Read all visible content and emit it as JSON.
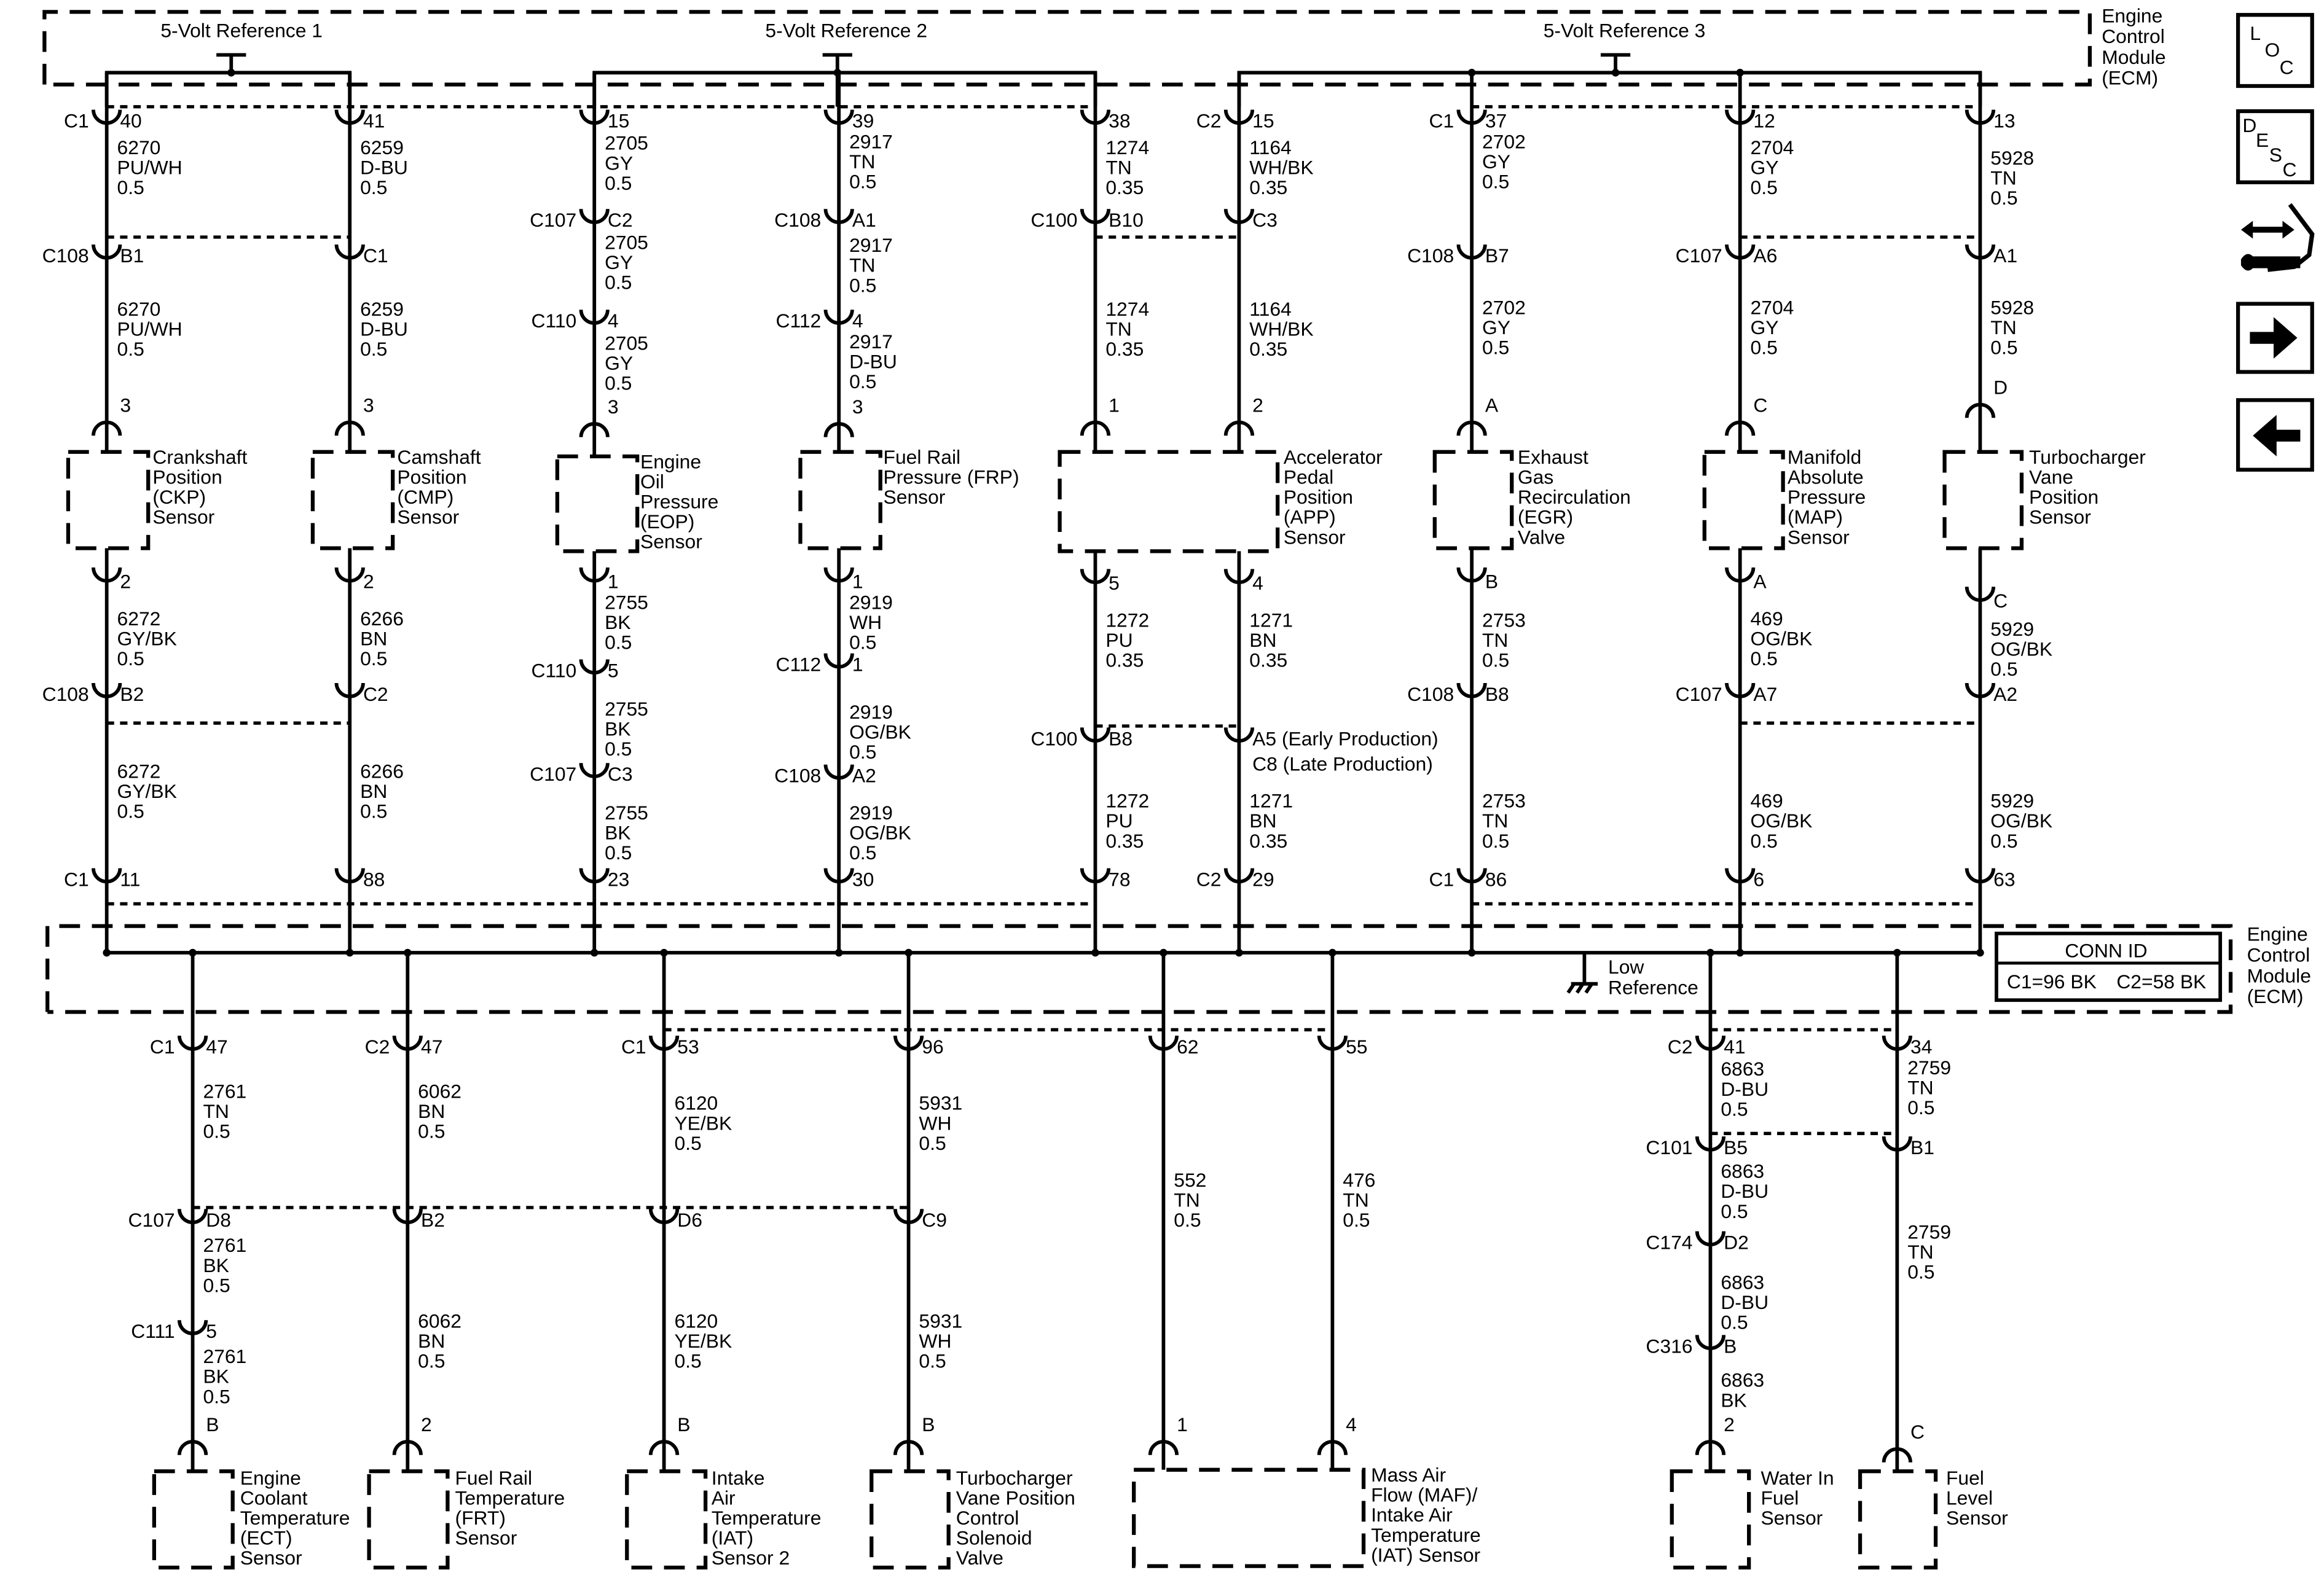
{
  "ecm": {
    "label": [
      "Engine",
      "Control",
      "Module",
      "(ECM)"
    ]
  },
  "references": [
    "5-Volt Reference 1",
    "5-Volt Reference 2",
    "5-Volt Reference 3"
  ],
  "low_reference": [
    "Low",
    "Reference"
  ],
  "conn_id": {
    "title": "CONN ID",
    "c1": "C1=96 BK",
    "c2": "C2=58 BK"
  },
  "nav": {
    "loc": [
      "L",
      "O",
      "C"
    ],
    "desc": [
      "D",
      "E",
      "S",
      "C"
    ],
    "icons": [
      "location-button",
      "description-button",
      "connector-tool-icon",
      "next-arrow-icon",
      "previous-arrow-icon"
    ]
  },
  "top_columns": [
    {
      "sensor": [
        "Crankshaft",
        "Position",
        "(CKP)",
        "Sensor"
      ],
      "to_sensor": [
        {
          "conn": "C1",
          "pin": "40"
        },
        {
          "wire": [
            "6270",
            "PU/WH",
            "0.5"
          ]
        },
        {
          "conn": "C108",
          "pin": "B1"
        },
        {
          "wire": [
            "6270",
            "PU/WH",
            "0.5"
          ]
        },
        {
          "pin": "3"
        }
      ],
      "from_sensor": [
        {
          "pin": "2"
        },
        {
          "wire": [
            "6272",
            "GY/BK",
            "0.5"
          ]
        },
        {
          "conn": "C108",
          "pin": "B2"
        },
        {
          "wire": [
            "6272",
            "GY/BK",
            "0.5"
          ]
        },
        {
          "conn": "C1",
          "pin": "11"
        }
      ]
    },
    {
      "sensor": [
        "Camshaft",
        "Position",
        "(CMP)",
        "Sensor"
      ],
      "to_sensor": [
        {
          "conn": "",
          "pin": "41"
        },
        {
          "wire": [
            "6259",
            "D-BU",
            "0.5"
          ]
        },
        {
          "conn": "",
          "pin": "C1"
        },
        {
          "wire": [
            "6259",
            "D-BU",
            "0.5"
          ]
        },
        {
          "pin": "3"
        }
      ],
      "from_sensor": [
        {
          "pin": "2"
        },
        {
          "wire": [
            "6266",
            "BN",
            "0.5"
          ]
        },
        {
          "conn": "",
          "pin": "C2"
        },
        {
          "wire": [
            "6266",
            "BN",
            "0.5"
          ]
        },
        {
          "conn": "",
          "pin": "88"
        }
      ]
    },
    {
      "sensor": [
        "Engine",
        "Oil",
        "Pressure",
        "(EOP)",
        "Sensor"
      ],
      "to_sensor": [
        {
          "conn": "",
          "pin": "15"
        },
        {
          "wire": [
            "2705",
            "GY",
            "0.5"
          ]
        },
        {
          "conn": "C107",
          "pin": "C2"
        },
        {
          "wire": [
            "2705",
            "GY",
            "0.5"
          ]
        },
        {
          "conn": "C110",
          "pin": "4"
        },
        {
          "wire": [
            "2705",
            "GY",
            "0.5"
          ]
        },
        {
          "pin": "3"
        }
      ],
      "from_sensor": [
        {
          "pin": "1"
        },
        {
          "wire": [
            "2755",
            "BK",
            "0.5"
          ]
        },
        {
          "conn": "C110",
          "pin": "5"
        },
        {
          "wire": [
            "2755",
            "BK",
            "0.5"
          ]
        },
        {
          "conn": "C107",
          "pin": "C3"
        },
        {
          "wire": [
            "2755",
            "BK",
            "0.5"
          ]
        },
        {
          "conn": "",
          "pin": "23"
        }
      ]
    },
    {
      "sensor": [
        "Fuel Rail",
        "Pressure (FRP)",
        "Sensor"
      ],
      "to_sensor": [
        {
          "conn": "",
          "pin": "39"
        },
        {
          "wire": [
            "2917",
            "TN",
            "0.5"
          ]
        },
        {
          "conn": "C108",
          "pin": "A1"
        },
        {
          "wire": [
            "2917",
            "TN",
            "0.5"
          ]
        },
        {
          "conn": "C112",
          "pin": "4"
        },
        {
          "wire": [
            "2917",
            "D-BU",
            "0.5"
          ]
        },
        {
          "pin": "3"
        }
      ],
      "from_sensor": [
        {
          "pin": "1"
        },
        {
          "wire": [
            "2919",
            "WH",
            "0.5"
          ]
        },
        {
          "conn": "C112",
          "pin": "1"
        },
        {
          "wire": [
            "2919",
            "OG/BK",
            "0.5"
          ]
        },
        {
          "conn": "C108",
          "pin": "A2"
        },
        {
          "wire": [
            "2919",
            "OG/BK",
            "0.5"
          ]
        },
        {
          "conn": "",
          "pin": "30"
        }
      ]
    },
    {
      "sensor": [],
      "to_sensor": [
        {
          "conn": "",
          "pin": "38"
        },
        {
          "wire": [
            "1274",
            "TN",
            "0.35"
          ]
        },
        {
          "conn": "C100",
          "pin": "B10"
        },
        {
          "wire": [
            "1274",
            "TN",
            "0.35"
          ]
        },
        {
          "pin": "1"
        }
      ],
      "from_sensor": [
        {
          "pin": "5"
        },
        {
          "wire": [
            "1272",
            "PU",
            "0.35"
          ]
        },
        {
          "conn": "C100",
          "pin": "B8"
        },
        {
          "wire": [
            "1272",
            "PU",
            "0.35"
          ]
        },
        {
          "conn": "",
          "pin": "78"
        }
      ]
    },
    {
      "sensor": [
        "Accelerator",
        "Pedal",
        "Position",
        "(APP)",
        "Sensor"
      ],
      "to_sensor": [
        {
          "conn": "C2",
          "pin": "15"
        },
        {
          "wire": [
            "1164",
            "WH/BK",
            "0.35"
          ]
        },
        {
          "conn": "",
          "pin": "C3"
        },
        {
          "wire": [
            "1164",
            "WH/BK",
            "0.35"
          ]
        },
        {
          "pin": "2"
        }
      ],
      "from_sensor": [
        {
          "pin": "4"
        },
        {
          "wire": [
            "1271",
            "BN",
            "0.35"
          ]
        },
        {
          "conn": "",
          "pin": "A5 (Early Production)",
          "pin2": "C8 (Late Production)"
        },
        {
          "wire": [
            "1271",
            "BN",
            "0.35"
          ]
        },
        {
          "conn": "C2",
          "pin": "29"
        }
      ]
    },
    {
      "sensor": [
        "Exhaust",
        "Gas",
        "Recirculation",
        "(EGR)",
        "Valve"
      ],
      "to_sensor": [
        {
          "conn": "C1",
          "pin": "37"
        },
        {
          "wire": [
            "2702",
            "GY",
            "0.5"
          ]
        },
        {
          "conn": "C108",
          "pin": "B7"
        },
        {
          "wire": [
            "2702",
            "GY",
            "0.5"
          ]
        },
        {
          "pin": "A"
        }
      ],
      "from_sensor": [
        {
          "pin": "B"
        },
        {
          "wire": [
            "2753",
            "TN",
            "0.5"
          ]
        },
        {
          "conn": "C108",
          "pin": "B8"
        },
        {
          "wire": [
            "2753",
            "TN",
            "0.5"
          ]
        },
        {
          "conn": "C1",
          "pin": "86"
        }
      ]
    },
    {
      "sensor": [
        "Manifold",
        "Absolute",
        "Pressure",
        "(MAP)",
        "Sensor"
      ],
      "to_sensor": [
        {
          "conn": "",
          "pin": "12"
        },
        {
          "wire": [
            "2704",
            "GY",
            "0.5"
          ]
        },
        {
          "conn": "C107",
          "pin": "A6"
        },
        {
          "wire": [
            "2704",
            "GY",
            "0.5"
          ]
        },
        {
          "pin": "C"
        }
      ],
      "from_sensor": [
        {
          "pin": "A"
        },
        {
          "wire": [
            "469",
            "OG/BK",
            "0.5"
          ]
        },
        {
          "conn": "C107",
          "pin": "A7"
        },
        {
          "wire": [
            "469",
            "OG/BK",
            "0.5"
          ]
        },
        {
          "conn": "",
          "pin": "6"
        }
      ]
    },
    {
      "sensor": [
        "Turbocharger",
        "Vane",
        "Position",
        "Sensor"
      ],
      "to_sensor": [
        {
          "conn": "",
          "pin": "13"
        },
        {
          "wire": [
            "5928",
            "TN",
            "0.5"
          ]
        },
        {
          "conn": "",
          "pin": "A1"
        },
        {
          "wire": [
            "5928",
            "TN",
            "0.5"
          ]
        },
        {
          "pin": "D"
        }
      ],
      "from_sensor": [
        {
          "pin": "C"
        },
        {
          "wire": [
            "5929",
            "OG/BK",
            "0.5"
          ]
        },
        {
          "conn": "",
          "pin": "A2"
        },
        {
          "wire": [
            "5929",
            "OG/BK",
            "0.5"
          ]
        },
        {
          "conn": "",
          "pin": "63"
        }
      ]
    }
  ],
  "bottom_columns": [
    {
      "sensor": [
        "Engine",
        "Coolant",
        "Temperature",
        "(ECT)",
        "Sensor"
      ],
      "to_sensor": [
        {
          "conn": "C1",
          "pin": "47"
        },
        {
          "wire": [
            "2761",
            "TN",
            "0.5"
          ]
        },
        {
          "conn": "C107",
          "pin": "D8"
        },
        {
          "wire": [
            "2761",
            "BK",
            "0.5"
          ]
        },
        {
          "conn": "C111",
          "pin": "5"
        },
        {
          "wire": [
            "2761",
            "BK",
            "0.5"
          ]
        },
        {
          "pin": "B"
        }
      ]
    },
    {
      "sensor": [
        "Fuel Rail",
        "Temperature",
        "(FRT)",
        "Sensor"
      ],
      "to_sensor": [
        {
          "conn": "C2",
          "pin": "47"
        },
        {
          "wire": [
            "6062",
            "BN",
            "0.5"
          ]
        },
        {
          "conn": "",
          "pin": "B2"
        },
        {
          "wire": [
            "6062",
            "BN",
            "0.5"
          ]
        },
        {
          "pin": "2"
        }
      ]
    },
    {
      "sensor": [
        "Intake",
        "Air",
        "Temperature",
        "(IAT)",
        "Sensor 2"
      ],
      "to_sensor": [
        {
          "conn": "C1",
          "pin": "53"
        },
        {
          "wire": [
            "6120",
            "YE/BK",
            "0.5"
          ]
        },
        {
          "conn": "",
          "pin": "D6"
        },
        {
          "wire": [
            "6120",
            "YE/BK",
            "0.5"
          ]
        },
        {
          "pin": "B"
        }
      ]
    },
    {
      "sensor": [
        "Turbocharger",
        "Vane Position",
        "Control",
        "Solenoid",
        "Valve"
      ],
      "to_sensor": [
        {
          "conn": "",
          "pin": "96"
        },
        {
          "wire": [
            "5931",
            "WH",
            "0.5"
          ]
        },
        {
          "conn": "",
          "pin": "C9"
        },
        {
          "wire": [
            "5931",
            "WH",
            "0.5"
          ]
        },
        {
          "pin": "B"
        }
      ]
    },
    {
      "sensor": [],
      "to_sensor": [
        {
          "conn": "",
          "pin": "62"
        },
        {
          "wire": [
            "552",
            "TN",
            "0.5"
          ]
        },
        {
          "pin": "1"
        }
      ]
    },
    {
      "sensor": [
        "Mass Air",
        "Flow (MAF)/",
        "Intake Air",
        "Temperature",
        "(IAT) Sensor"
      ],
      "to_sensor": [
        {
          "conn": "",
          "pin": "55"
        },
        {
          "wire": [
            "476",
            "TN",
            "0.5"
          ]
        },
        {
          "pin": "4"
        }
      ]
    },
    {
      "sensor": [
        "Water In",
        "Fuel",
        "Sensor"
      ],
      "to_sensor": [
        {
          "conn": "C2",
          "pin": "41"
        },
        {
          "wire": [
            "6863",
            "D-BU",
            "0.5"
          ]
        },
        {
          "conn": "C101",
          "pin": "B5"
        },
        {
          "wire": [
            "6863",
            "D-BU",
            "0.5"
          ]
        },
        {
          "conn": "C174",
          "pin": "D2"
        },
        {
          "wire": [
            "6863",
            "D-BU",
            "0.5"
          ]
        },
        {
          "conn": "C316",
          "pin": "B"
        },
        {
          "wire": [
            "6863",
            "BK"
          ]
        },
        {
          "pin": "2"
        }
      ]
    },
    {
      "sensor": [
        "Fuel",
        "Level",
        "Sensor"
      ],
      "to_sensor": [
        {
          "conn": "",
          "pin": "34"
        },
        {
          "wire": [
            "2759",
            "TN",
            "0.5"
          ]
        },
        {
          "conn": "",
          "pin": "B1"
        },
        {
          "wire": [
            "2759",
            "TN",
            "0.5"
          ]
        },
        {
          "pin": "C"
        }
      ]
    }
  ]
}
